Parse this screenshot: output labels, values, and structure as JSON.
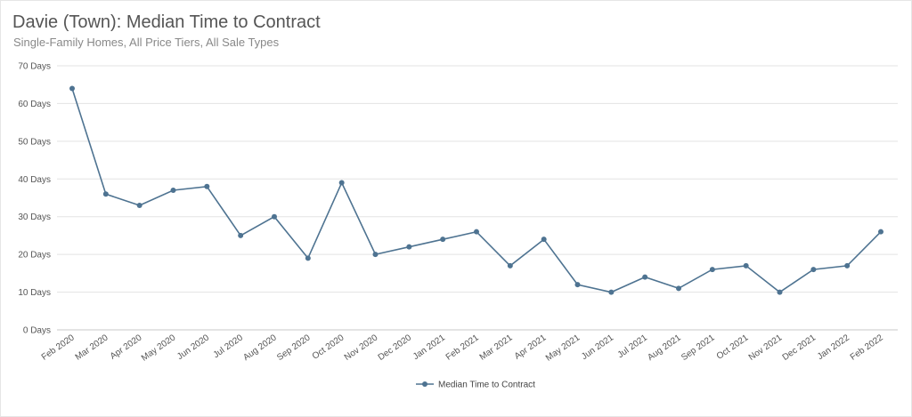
{
  "chart_data": {
    "type": "line",
    "title": "Davie (Town): Median Time to Contract",
    "subtitle": "Single-Family Homes, All Price Tiers, All Sale Types",
    "categories": [
      "Feb 2020",
      "Mar 2020",
      "Apr 2020",
      "May 2020",
      "Jun 2020",
      "Jul 2020",
      "Aug 2020",
      "Sep 2020",
      "Oct 2020",
      "Nov 2020",
      "Dec 2020",
      "Jan 2021",
      "Feb 2021",
      "Mar 2021",
      "Apr 2021",
      "May 2021",
      "Jun 2021",
      "Jul 2021",
      "Aug 2021",
      "Sep 2021",
      "Oct 2021",
      "Nov 2021",
      "Dec 2021",
      "Jan 2022",
      "Feb 2022"
    ],
    "series": [
      {
        "name": "Median Time to Contract",
        "values": [
          64,
          36,
          33,
          37,
          38,
          25,
          30,
          19,
          39,
          20,
          22,
          24,
          26,
          17,
          24,
          12,
          10,
          14,
          11,
          16,
          17,
          10,
          16,
          17,
          26
        ]
      }
    ],
    "yticks": [
      "0 Days",
      "10 Days",
      "20 Days",
      "30 Days",
      "40 Days",
      "50 Days",
      "60 Days",
      "70 Days"
    ],
    "ylim": [
      0,
      70
    ],
    "grid": true,
    "legend": "bottom-center",
    "line_color": "#4e7391"
  }
}
